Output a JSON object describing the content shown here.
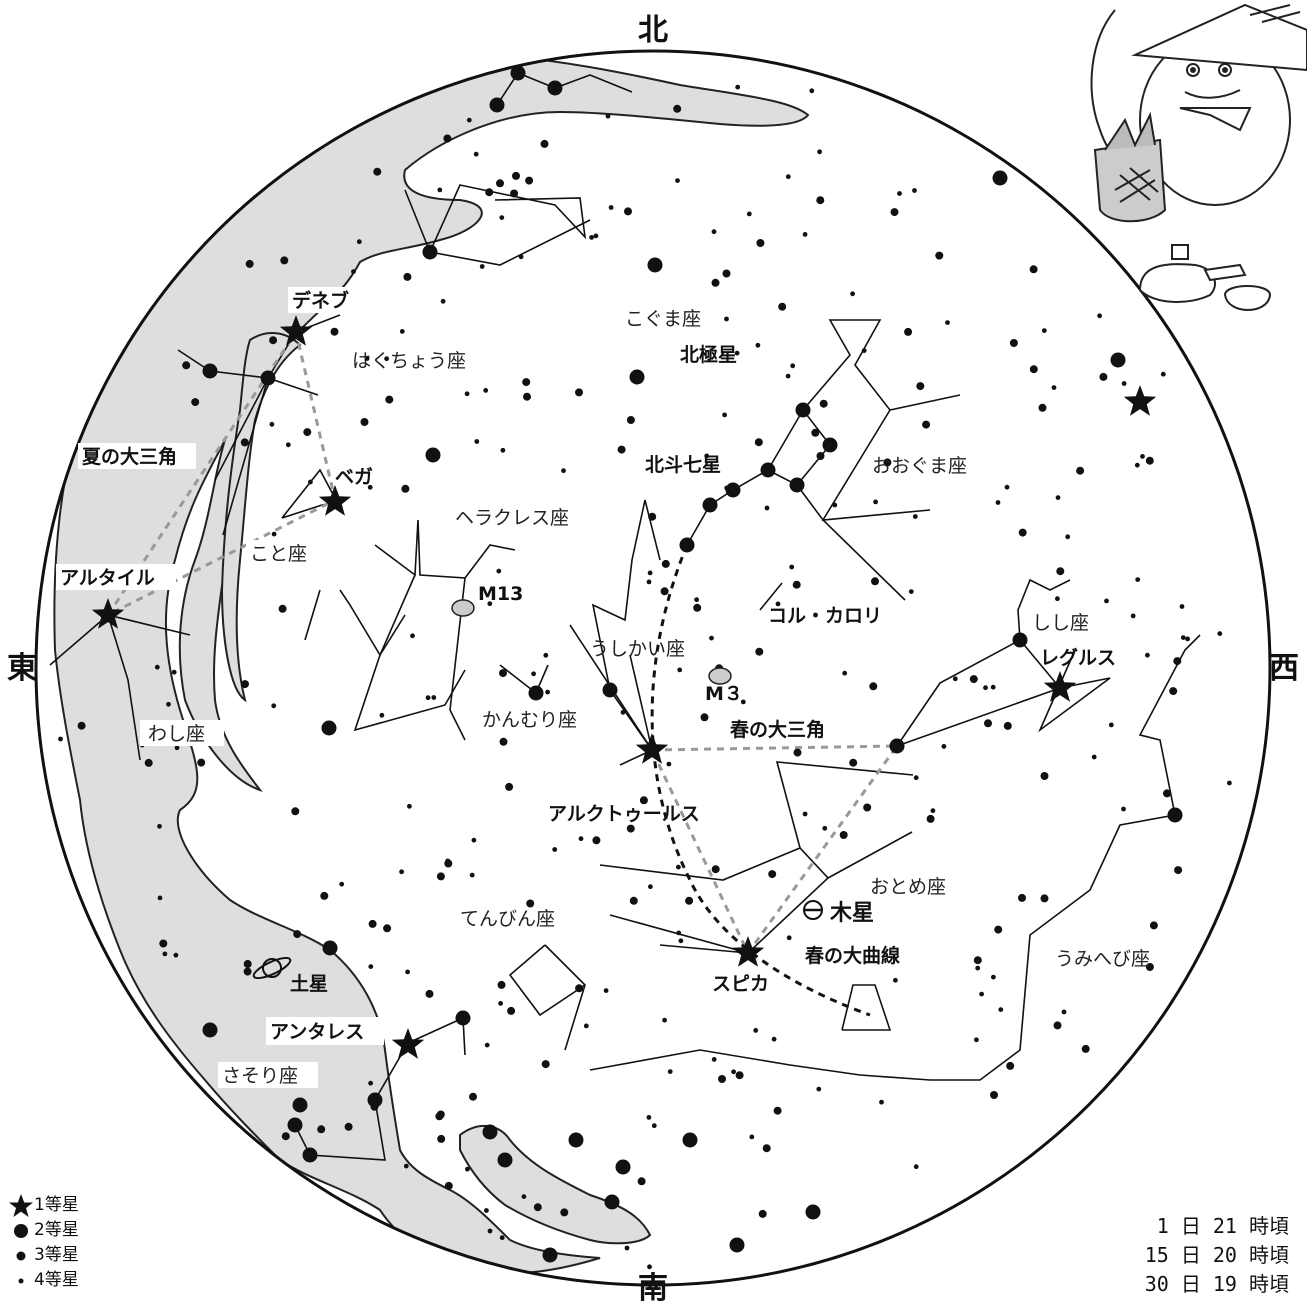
{
  "directions": {
    "north": "北",
    "south": "南",
    "east": "東",
    "west": "西"
  },
  "constellations": {
    "cygnus": "はくちょう座",
    "ursa_minor": "こぐま座",
    "ursa_major": "おおぐま座",
    "hercules": "ヘラクレス座",
    "lyra": "こと座",
    "bootes": "うしかい座",
    "corona_borealis": "かんむり座",
    "leo": "しし座",
    "aquila": "わし座",
    "virgo": "おとめ座",
    "libra": "てんびん座",
    "hydra": "うみへび座",
    "scorpius": "さそり座"
  },
  "stars": {
    "deneb": "デネブ",
    "vega": "ベガ",
    "altair": "アルタイル",
    "polaris": "北極星",
    "big_dipper": "北斗七星",
    "cor_caroli": "コル・カロリ",
    "regulus": "レグルス",
    "arcturus": "アルクトゥールス",
    "spica": "スピカ",
    "antares": "アンタレス"
  },
  "asterisms": {
    "summer_triangle": "夏の大三角",
    "spring_triangle": "春の大三角",
    "spring_curve": "春の大曲線"
  },
  "objects": {
    "m13": "M13",
    "m3": "M３",
    "jupiter": "木星",
    "saturn": "土星"
  },
  "legend": [
    "1等星",
    "2等星",
    "3等星",
    "4等星"
  ],
  "times": [
    "1 日 21 時頃",
    "15 日 20 時頃",
    "30 日 19 時頃"
  ]
}
